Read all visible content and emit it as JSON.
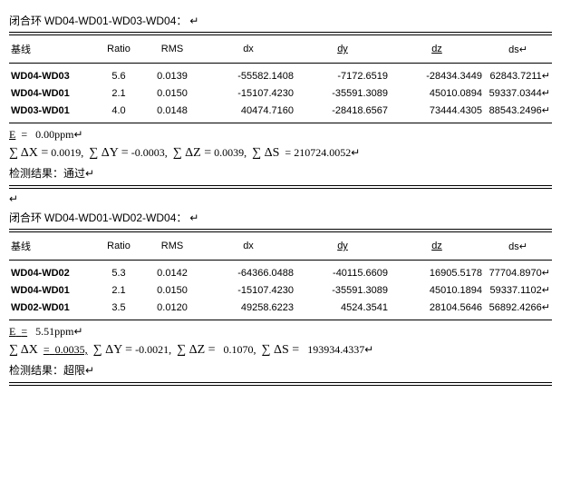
{
  "loops": [
    {
      "title_prefix": "闭合环",
      "title_path": "WD04-WD01-WD03-WD04：",
      "headers": {
        "baseline": "基线",
        "ratio": "Ratio",
        "rms": "RMS",
        "dx": "dx",
        "dy": "dy",
        "dz": "dz",
        "ds": "ds"
      },
      "rows": [
        {
          "baseline": "WD04-WD03",
          "ratio": "5.6",
          "rms": "0.0139",
          "dx": "-55582.1408",
          "dy": "-7172.6519",
          "dz": "-28434.3449",
          "ds": "62843.7211"
        },
        {
          "baseline": "WD04-WD01",
          "ratio": "2.1",
          "rms": "0.0150",
          "dx": "-15107.4230",
          "dy": "-35591.3089",
          "dz": "45010.0894",
          "ds": "59337.0344"
        },
        {
          "baseline": "WD03-WD01",
          "ratio": "4.0",
          "rms": "0.0148",
          "dx": "40474.7160",
          "dy": "-28418.6567",
          "dz": "73444.4305",
          "ds": "88543.2496"
        }
      ],
      "E_label": "E",
      "E_eq": "=",
      "E_value": "0.00ppm",
      "sigma_dx_label": "∑ ΔX =",
      "sigma_dx_value": "0.0019,",
      "sigma_dy_label": "∑ ΔY =",
      "sigma_dy_value": "-0.0003,",
      "sigma_dz_label": "∑ ΔZ =",
      "sigma_dz_value": "0.0039,",
      "sigma_ds_label": "∑ ΔS",
      "sigma_ds_eq": "=",
      "sigma_ds_value": "210724.0052",
      "result_label": "检测结果：",
      "result_value": "通过",
      "E_underline": false,
      "S_underline": false
    },
    {
      "title_prefix": "闭合环",
      "title_path": "WD04-WD01-WD02-WD04：",
      "headers": {
        "baseline": "基线",
        "ratio": "Ratio",
        "rms": "RMS",
        "dx": "dx",
        "dy": "dy",
        "dz": "dz",
        "ds": "ds"
      },
      "rows": [
        {
          "baseline": "WD04-WD02",
          "ratio": "5.3",
          "rms": "0.0142",
          "dx": "-64366.0488",
          "dy": "-40115.6609",
          "dz": "16905.5178",
          "ds": "77704.8970"
        },
        {
          "baseline": "WD04-WD01",
          "ratio": "2.1",
          "rms": "0.0150",
          "dx": "-15107.4230",
          "dy": "-35591.3089",
          "dz": "45010.1894",
          "ds": "59337.1102"
        },
        {
          "baseline": "WD02-WD01",
          "ratio": "3.5",
          "rms": "0.0120",
          "dx": "49258.6223",
          "dy": "4524.3541",
          "dz": "28104.5646",
          "ds": "56892.4266"
        }
      ],
      "E_label": "E",
      "E_eq": "=",
      "E_value": "5.51ppm",
      "sigma_dx_label": "∑ ΔX",
      "sigma_dx_eq": "=",
      "sigma_dx_value": "0.0035,",
      "sigma_dy_label": "∑ ΔY =",
      "sigma_dy_value": "-0.0021,",
      "sigma_dz_label": "∑ ΔZ =",
      "sigma_dz_value": "0.1070,",
      "sigma_ds_label": "∑ ΔS =",
      "sigma_ds_value": "193934.4337",
      "result_label": "检测结果：",
      "result_value": "超限",
      "E_underline": true,
      "S_underline": true
    }
  ],
  "paragraph_mark": "↵"
}
